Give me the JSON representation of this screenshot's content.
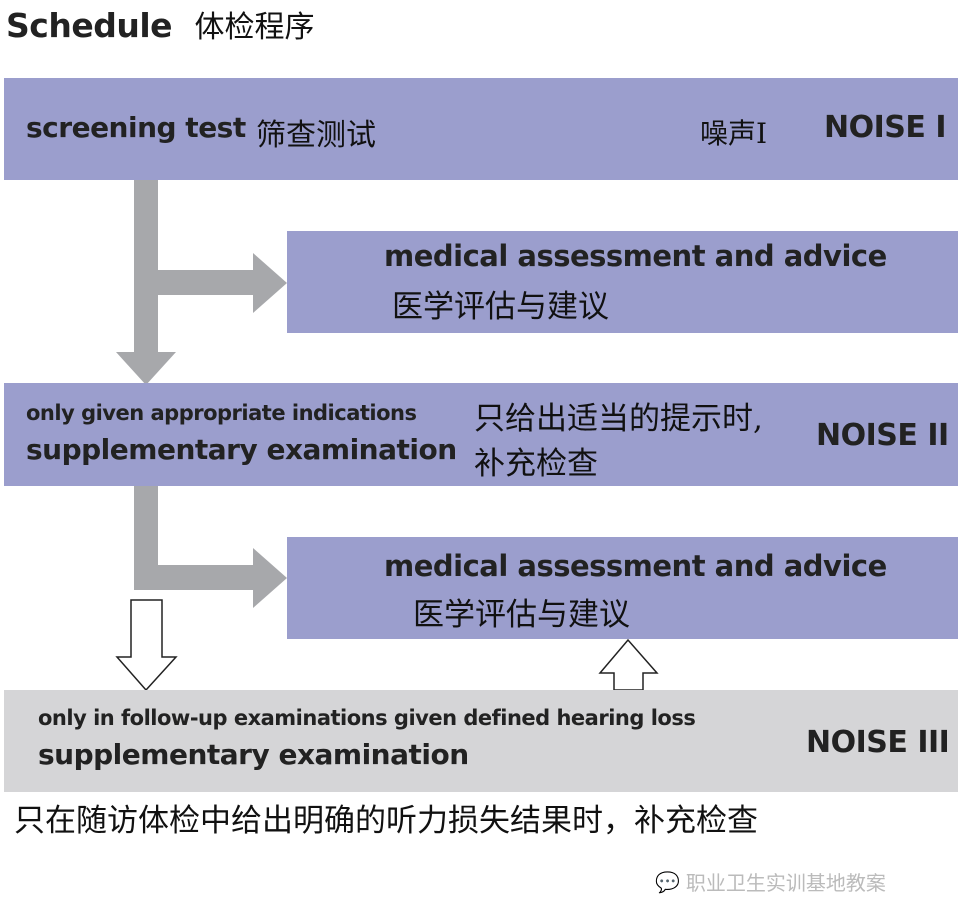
{
  "title": {
    "en": "Schedule",
    "zh": "体检程序"
  },
  "boxes": [
    {
      "en": "screening test",
      "zh": "筛查测试",
      "right_zh": "噪声Ⅰ",
      "right_en": "NOISE I"
    },
    {
      "en": "medical assessment and advice",
      "zh": "医学评估与建议"
    },
    {
      "en_small": "only given appropriate indications",
      "en": "supplementary examination",
      "zh1": "只给出适当的提示时,",
      "zh2": "补充检查",
      "right_en": "NOISE II"
    },
    {
      "en": "medical assessment and advice",
      "zh": "医学评估与建议"
    },
    {
      "en_small": "only in follow-up examinations given defined hearing loss",
      "en": "supplementary examination",
      "right_en": "NOISE III"
    }
  ],
  "footer_zh": "只在随访体检中给出明确的听力损失结果时，补充检查",
  "watermark": "职业卫生实训基地教案",
  "colors": {
    "box": "#9b9ecd",
    "box_light": "#d5d5d7",
    "arrow": "#a7a8ab"
  }
}
